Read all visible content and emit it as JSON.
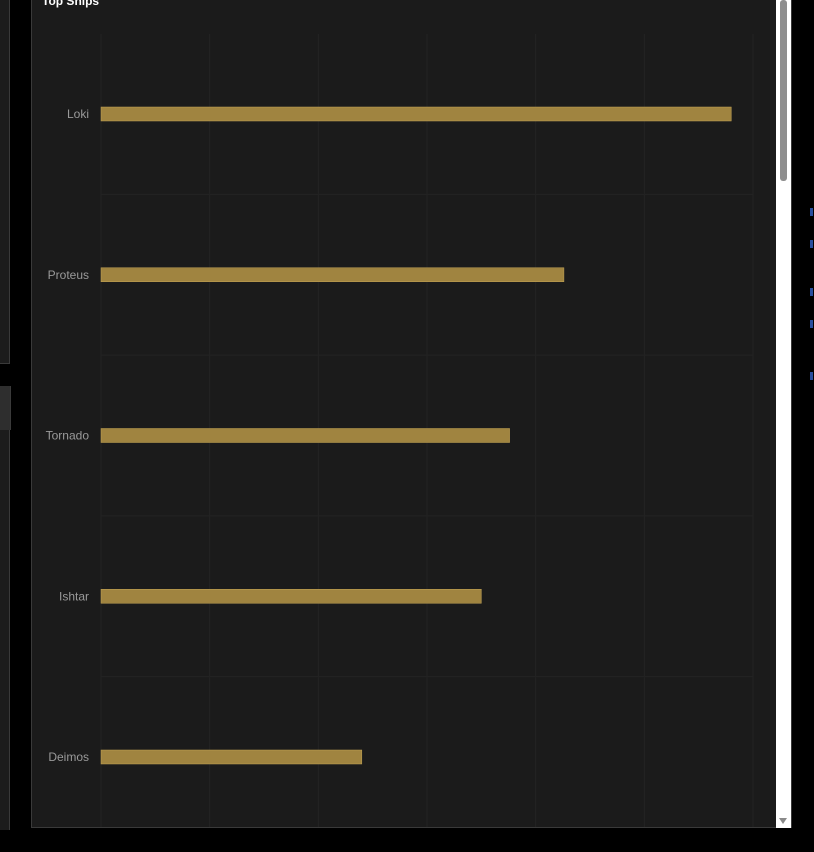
{
  "window": {
    "title": "Top Ships"
  },
  "colors": {
    "bar": "#a08440",
    "bar_border": "#c4a455",
    "grid": "#232323",
    "label": "#9a9a9a",
    "panel_bg": "#1b1b1b"
  },
  "chart_data": {
    "type": "bar",
    "orientation": "horizontal",
    "title": "Top Ships",
    "categories": [
      "Loki",
      "Proteus",
      "Tornado",
      "Ishtar",
      "Deimos"
    ],
    "values": [
      29,
      21.3,
      18.8,
      17.5,
      12
    ],
    "xlim": [
      0,
      30
    ],
    "grid": true,
    "tick_labels_visible": false,
    "legend": "none"
  }
}
